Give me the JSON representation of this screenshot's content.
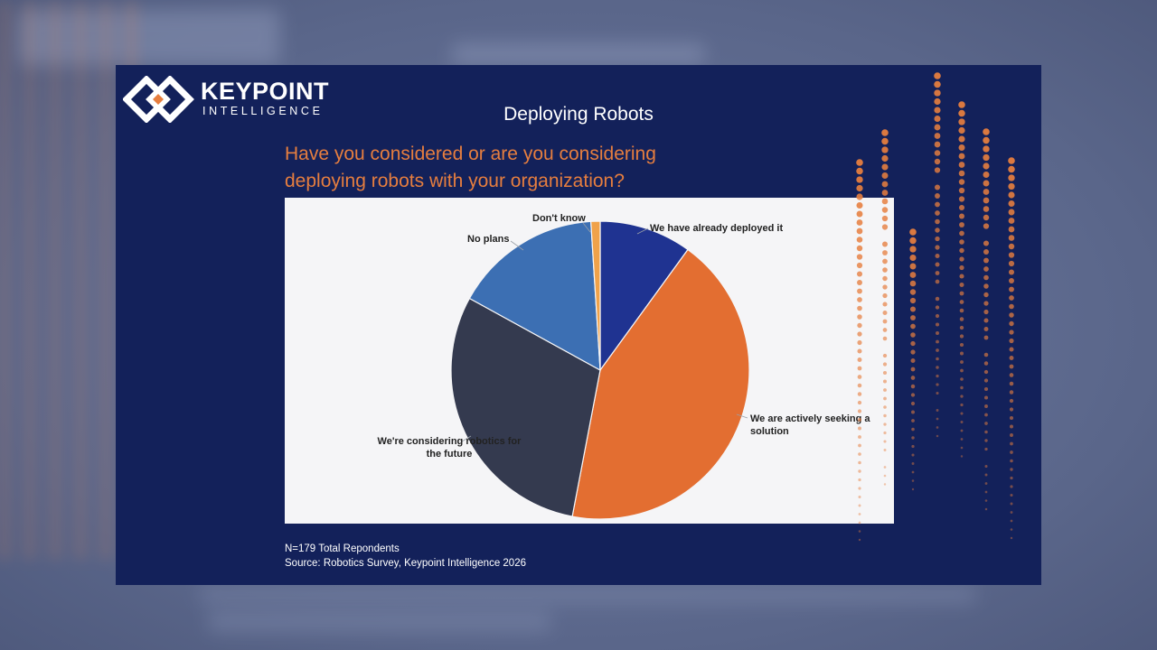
{
  "slide": {
    "logo": {
      "wordmark": "KEYPOINT",
      "subtitle": "INTELLIGENCE"
    },
    "title": "Deploying Robots",
    "question_line1": "Have you considered or are you considering",
    "question_line2": "deploying robots with your organization?",
    "footer_line1": "N=179 Total Repondents",
    "footer_line2": "Source: Robotics Survey, Keypoint Intelligence 2026"
  },
  "colors": {
    "slide_bg": "#13215a",
    "accent_orange": "#e67e3f",
    "chart_bg": "#f5f5f7"
  },
  "chart_data": {
    "type": "pie",
    "title": "",
    "unit": "percent",
    "start_angle_deg": 0,
    "direction": "clockwise",
    "slices": [
      {
        "label": "We have already deployed it",
        "label_lines": [
          "We have already deployed it"
        ],
        "value": 10,
        "color": "#1f3391"
      },
      {
        "label": "We are actively seeking a solution",
        "label_lines": [
          "We are actively seeking a",
          "solution"
        ],
        "value": 43,
        "color": "#e36e31"
      },
      {
        "label": "We're considering robotics for the future",
        "label_lines": [
          "We're considering robotics for",
          "the future"
        ],
        "value": 30,
        "color": "#343a4f"
      },
      {
        "label": "No plans",
        "label_lines": [
          "No plans"
        ],
        "value": 16,
        "color": "#3c6fb3"
      },
      {
        "label": "Don't know",
        "label_lines": [
          "Don't know"
        ],
        "value": 1,
        "color": "#f0a24a"
      }
    ],
    "legend": "none"
  }
}
